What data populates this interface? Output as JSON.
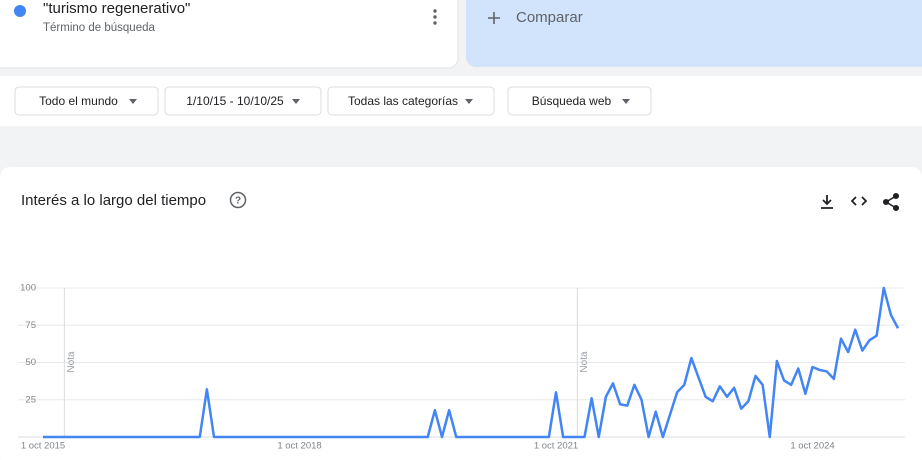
{
  "header": {
    "term_caption": "Término de búsqueda",
    "compare": "Comparar"
  },
  "filters": [
    "Todo el mundo",
    "1/10/15 - 10/10/25",
    "Todas las categorías",
    "Búsqueda web"
  ],
  "chart_data": {
    "type": "line",
    "title": "Interés a lo largo del tiempo",
    "categories": [
      "1 oct 2015",
      null,
      null,
      null,
      null,
      null,
      null,
      null,
      null,
      null,
      null,
      null,
      null,
      null,
      null,
      null,
      null,
      null,
      null,
      null,
      null,
      null,
      null,
      null,
      null,
      null,
      null,
      null,
      null,
      null,
      null,
      null,
      null,
      null,
      null,
      null,
      "1 oct 2018",
      null,
      null,
      null,
      null,
      null,
      null,
      null,
      null,
      null,
      null,
      null,
      null,
      null,
      null,
      null,
      null,
      null,
      null,
      null,
      null,
      null,
      null,
      null,
      null,
      null,
      null,
      null,
      null,
      null,
      null,
      null,
      null,
      null,
      null,
      null,
      "1 oct 2021",
      null,
      null,
      null,
      null,
      null,
      null,
      null,
      null,
      null,
      null,
      null,
      null,
      null,
      null,
      null,
      null,
      null,
      null,
      null,
      null,
      null,
      null,
      null,
      null,
      null,
      null,
      null,
      null,
      null,
      null,
      null,
      null,
      null,
      null,
      null,
      "1 oct 2024",
      null,
      null,
      null,
      null,
      null,
      null,
      null,
      null,
      null,
      null,
      null,
      null
    ],
    "series": [
      {
        "name": "\"turismo regenerativo\"",
        "color": "#4285f4",
        "values": [
          0,
          0,
          0,
          0,
          0,
          0,
          0,
          0,
          0,
          0,
          0,
          0,
          0,
          0,
          0,
          0,
          0,
          0,
          0,
          0,
          0,
          0,
          0,
          32,
          0,
          0,
          0,
          0,
          0,
          0,
          0,
          0,
          0,
          0,
          0,
          0,
          0,
          0,
          0,
          0,
          0,
          0,
          0,
          0,
          0,
          0,
          0,
          0,
          0,
          0,
          0,
          0,
          0,
          0,
          0,
          18,
          0,
          18,
          0,
          0,
          0,
          0,
          0,
          0,
          0,
          0,
          0,
          0,
          0,
          0,
          0,
          0,
          30,
          0,
          0,
          0,
          0,
          26,
          0,
          27,
          36,
          22,
          21,
          35,
          25,
          0,
          17,
          0,
          15,
          30,
          35,
          53,
          40,
          27,
          24,
          34,
          27,
          33,
          19,
          24,
          41,
          35,
          0,
          51,
          38,
          35,
          46,
          29,
          47,
          45,
          44,
          39,
          66,
          57,
          72,
          58,
          65,
          68,
          100,
          82,
          73
        ]
      }
    ],
    "ylim": [
      0,
      100
    ],
    "yticks": [
      25,
      50,
      75,
      100
    ],
    "grid": true,
    "notes": [
      {
        "label": "Nota",
        "at": 3
      },
      {
        "label": "Nota",
        "at": 75
      }
    ]
  }
}
